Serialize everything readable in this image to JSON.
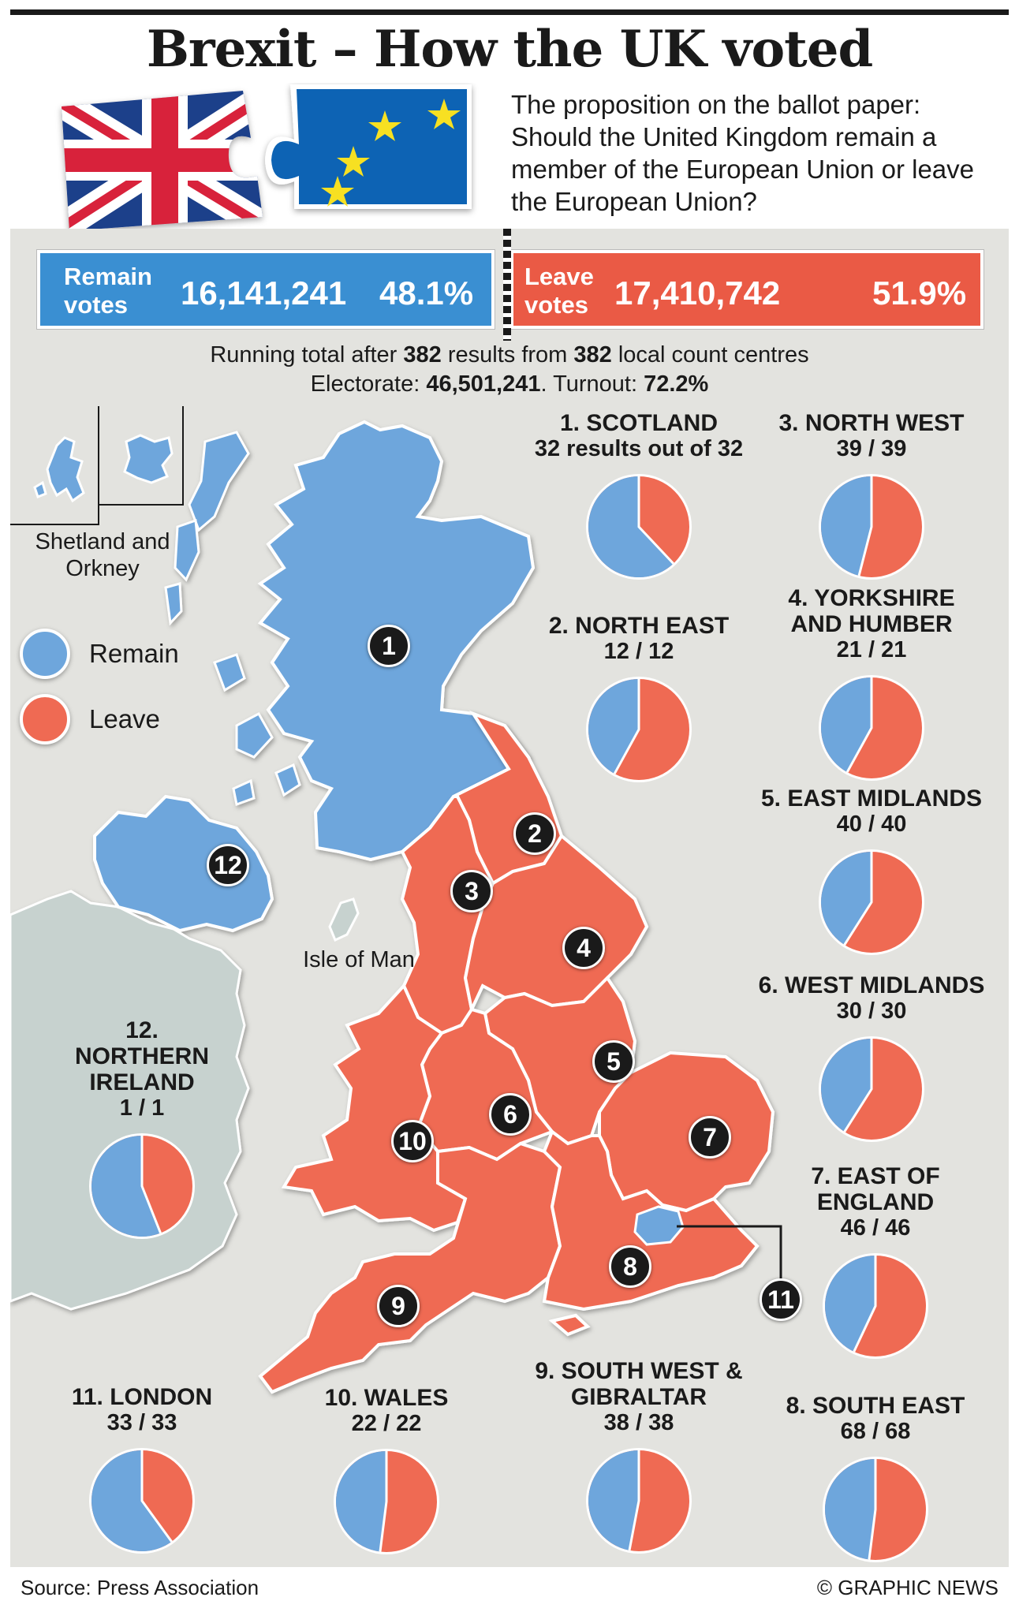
{
  "title": "Brexit – How the UK voted",
  "proposition": "The proposition on the ballot paper: Should the United Kingdom remain a member of the European Union or leave the European Union?",
  "results": {
    "remain": {
      "label_line1": "Remain",
      "label_line2": "votes",
      "votes": "16,141,241",
      "percent": "48.1%",
      "color": "#3a8fd2"
    },
    "leave": {
      "label_line1": "Leave",
      "label_line2": "votes",
      "votes": "17,410,742",
      "percent": "51.9%",
      "color": "#ea5a45"
    }
  },
  "totals": {
    "line1_a": "Running total after ",
    "results_count": "382",
    "line1_b": " results from ",
    "centres_count": "382",
    "line1_c": " local count centres",
    "line2_a": "Electorate: ",
    "electorate": "46,501,241",
    "line2_b": ". Turnout: ",
    "turnout": "72.2%"
  },
  "legend": {
    "remain": "Remain",
    "leave": "Leave"
  },
  "map_labels": {
    "shetland": "Shetland and Orkney",
    "isle_of_man": "Isle of Man"
  },
  "colors": {
    "remain": "#6ea6dc",
    "leave": "#ef6a53",
    "land": "#c7d2cf",
    "panel": "#e3e3df"
  },
  "regions": [
    {
      "num": "1",
      "name": "1. SCOTLAND",
      "count": "32 results out of 32",
      "remain": 0.62
    },
    {
      "num": "2",
      "name": "2. NORTH EAST",
      "count": "12 / 12",
      "remain": 0.42
    },
    {
      "num": "3",
      "name": "3. NORTH WEST",
      "count": "39 / 39",
      "remain": 0.46
    },
    {
      "num": "4",
      "name": "4. YORKSHIRE AND HUMBER",
      "count": "21 / 21",
      "remain": 0.42
    },
    {
      "num": "5",
      "name": "5. EAST MIDLANDS",
      "count": "40 / 40",
      "remain": 0.41
    },
    {
      "num": "6",
      "name": "6. WEST MIDLANDS",
      "count": "30 / 30",
      "remain": 0.41
    },
    {
      "num": "7",
      "name": "7. EAST OF ENGLAND",
      "count": "46 / 46",
      "remain": 0.43
    },
    {
      "num": "8",
      "name": "8. SOUTH EAST",
      "count": "68 / 68",
      "remain": 0.48
    },
    {
      "num": "9",
      "name": "9. SOUTH WEST & GIBRALTAR",
      "count": "38 / 38",
      "remain": 0.47
    },
    {
      "num": "10",
      "name": "10. WALES",
      "count": "22 / 22",
      "remain": 0.48
    },
    {
      "num": "11",
      "name": "11. LONDON",
      "count": "33 / 33",
      "remain": 0.6
    },
    {
      "num": "12",
      "name": "12. NORTHERN IRELAND",
      "count": "1 / 1",
      "remain": 0.56
    }
  ],
  "footer": {
    "source": "Source: Press Association",
    "credit": "© GRAPHIC NEWS"
  }
}
